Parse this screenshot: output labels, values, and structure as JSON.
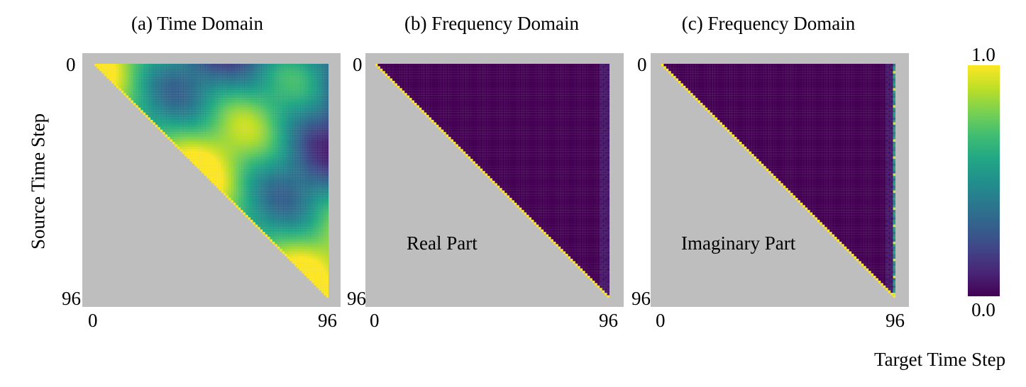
{
  "chart_data": [
    {
      "type": "heatmap",
      "title": "(a) Time Domain",
      "annotation": "",
      "ylabel": "Source Time Step",
      "xlabel": "",
      "x_ticks": [
        "0",
        "96"
      ],
      "y_ticks": [
        "0",
        "96"
      ],
      "grid_size": 96,
      "mask": "upper-triangular",
      "pattern": "time",
      "value_range": [
        0.0,
        1.0
      ]
    },
    {
      "type": "heatmap",
      "title": "(b) Frequency Domain",
      "annotation": "Real Part",
      "ylabel": "",
      "xlabel": "",
      "x_ticks": [
        "0",
        "96"
      ],
      "y_ticks": [
        "0",
        "96"
      ],
      "grid_size": 96,
      "mask": "upper-triangular",
      "pattern": "diagonal",
      "value_range": [
        0.0,
        1.0
      ]
    },
    {
      "type": "heatmap",
      "title": "(c) Frequency Domain",
      "annotation": "Imaginary Part",
      "ylabel": "",
      "xlabel": "Target Time Step",
      "x_ticks": [
        "0",
        "96"
      ],
      "y_ticks": [
        "0",
        "96"
      ],
      "grid_size": 96,
      "mask": "upper-triangular",
      "pattern": "diagonal-lastcol",
      "value_range": [
        0.0,
        1.0
      ]
    }
  ],
  "colorbar": {
    "max_label": "1.0",
    "min_label": "0.0",
    "colormap": "viridis"
  }
}
